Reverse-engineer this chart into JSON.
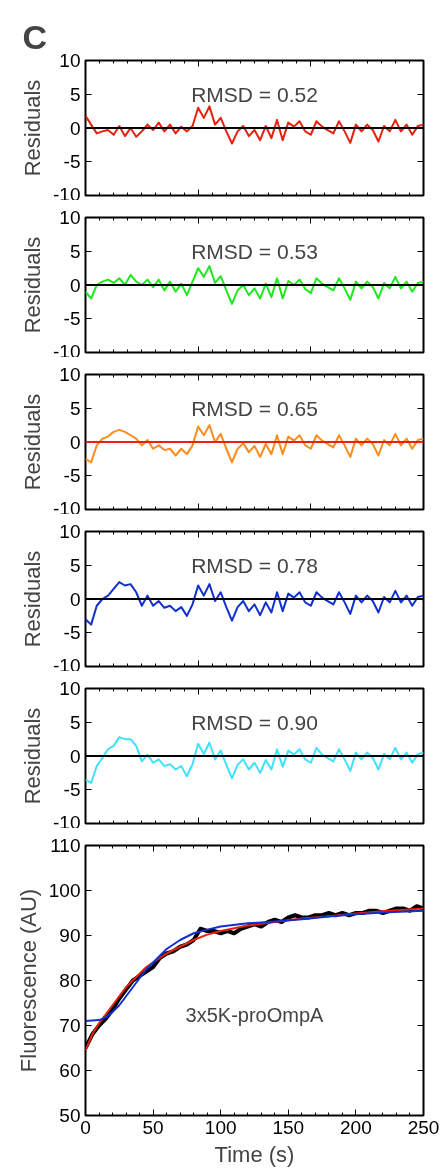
{
  "chart_data": [
    {
      "type": "line",
      "title": "C",
      "ylabel": "Residuals",
      "annotations": [
        "RMSD = 0.52"
      ],
      "ylim": [
        -10,
        10
      ],
      "yticks": [
        -10,
        -5,
        0,
        5,
        10
      ],
      "tick_labels": "y",
      "grid": false,
      "ref_lines": [
        {
          "axis": "y",
          "value": 0,
          "color": "#000000"
        }
      ],
      "categories": [
        null,
        null,
        null,
        null,
        null,
        null,
        null,
        null,
        null,
        null,
        null,
        null,
        null,
        null,
        null,
        null,
        null,
        null,
        null,
        null,
        null,
        null,
        null,
        null,
        null,
        null,
        null,
        null,
        null,
        null,
        null,
        null,
        null,
        null,
        null,
        null,
        null,
        null,
        null,
        null,
        null,
        null,
        null,
        null,
        null,
        null,
        null,
        null,
        null,
        null,
        null,
        null,
        null,
        null,
        null,
        null,
        null,
        null,
        null,
        null,
        null
      ],
      "series": [
        {
          "color": "#e8210c",
          "values": [
            1.8,
            0.5,
            -0.8,
            -0.5,
            -0.3,
            -1,
            0.3,
            -1.2,
            0,
            -1.3,
            -0.5,
            0.5,
            -0.3,
            0.8,
            -0.5,
            0.5,
            -0.8,
            0.2,
            -0.5,
            0.3,
            3,
            1.5,
            3.2,
            0.5,
            1.5,
            -0.5,
            -2.3,
            -0.5,
            0.3,
            -1.2,
            -0.3,
            -1.8,
            0.3,
            -1.5,
            1.2,
            -1.8,
            0.8,
            0.2,
            1,
            -0.5,
            -1,
            1,
            0.2,
            -0.3,
            -0.8,
            1,
            -0.5,
            -2.2,
            0.5,
            -0.5,
            0.5,
            -0.3,
            -2,
            0.3,
            -0.5,
            1.2,
            -0.5,
            0.5,
            -1,
            0.3,
            0.5
          ]
        }
      ]
    },
    {
      "type": "line",
      "ylabel": "Residuals",
      "annotations": [
        "RMSD = 0.53"
      ],
      "ylim": [
        -10,
        10
      ],
      "yticks": [
        -10,
        -5,
        0,
        5,
        10
      ],
      "tick_labels": "y",
      "grid": false,
      "ref_lines": [
        {
          "axis": "y",
          "value": 0,
          "color": "#000000"
        }
      ],
      "categories": [
        null,
        null,
        null,
        null,
        null,
        null,
        null,
        null,
        null,
        null,
        null,
        null,
        null,
        null,
        null,
        null,
        null,
        null,
        null,
        null,
        null,
        null,
        null,
        null,
        null,
        null,
        null,
        null,
        null,
        null,
        null,
        null,
        null,
        null,
        null,
        null,
        null,
        null,
        null,
        null,
        null,
        null,
        null,
        null,
        null,
        null,
        null,
        null,
        null,
        null,
        null,
        null,
        null,
        null,
        null,
        null,
        null,
        null,
        null,
        null,
        null
      ],
      "series": [
        {
          "color": "#1ee81e",
          "values": [
            -1,
            -2,
            0,
            0.5,
            0.8,
            0.3,
            1,
            0,
            1.5,
            0.5,
            0,
            0.8,
            -0.3,
            0.8,
            -0.8,
            0.5,
            -1,
            0.2,
            -1.5,
            0.5,
            2.5,
            1.2,
            2.8,
            0.3,
            1.3,
            -0.8,
            -2.8,
            -0.8,
            0,
            -1.5,
            -0.5,
            -2,
            0.2,
            -1.8,
            1,
            -2,
            0.6,
            0,
            0.8,
            -0.6,
            -1.2,
            1,
            0.2,
            -0.3,
            -0.8,
            1,
            -0.5,
            -2.2,
            0.5,
            -0.5,
            0.5,
            -0.3,
            -2,
            0.3,
            -0.5,
            1.2,
            -0.5,
            0.5,
            -1,
            0.3,
            0.5
          ]
        }
      ]
    },
    {
      "type": "line",
      "ylabel": "Residuals",
      "annotations": [
        "RMSD = 0.65"
      ],
      "ylim": [
        -10,
        10
      ],
      "yticks": [
        -10,
        -5,
        0,
        5,
        10
      ],
      "tick_labels": "y",
      "grid": false,
      "ref_lines": [
        {
          "axis": "y",
          "value": 0,
          "color": "#e8210c"
        }
      ],
      "categories": [
        null,
        null,
        null,
        null,
        null,
        null,
        null,
        null,
        null,
        null,
        null,
        null,
        null,
        null,
        null,
        null,
        null,
        null,
        null,
        null,
        null,
        null,
        null,
        null,
        null,
        null,
        null,
        null,
        null,
        null,
        null,
        null,
        null,
        null,
        null,
        null,
        null,
        null,
        null,
        null,
        null,
        null,
        null,
        null,
        null,
        null,
        null,
        null,
        null,
        null,
        null,
        null,
        null,
        null,
        null,
        null,
        null,
        null,
        null,
        null,
        null
      ],
      "series": [
        {
          "color": "#ff8c1a",
          "values": [
            -2.5,
            -3,
            -0.5,
            0.5,
            0.8,
            1.5,
            1.8,
            1.5,
            1,
            0.5,
            -0.5,
            0.3,
            -1,
            -0.5,
            -1.2,
            -1,
            -2,
            -1,
            -1.8,
            -0.5,
            2.3,
            1,
            2.5,
            0,
            1.2,
            -1,
            -3,
            -1,
            -0.2,
            -1.5,
            -0.6,
            -2.2,
            -0.3,
            -1.8,
            1,
            -1.8,
            0.8,
            0.2,
            1,
            -0.5,
            -1,
            1,
            0.2,
            -0.3,
            -0.8,
            1,
            -0.5,
            -2.2,
            0.5,
            -0.5,
            0.5,
            -0.3,
            -2,
            0.3,
            -0.5,
            1.2,
            -0.5,
            0.5,
            -1,
            0.3,
            0.5
          ]
        }
      ]
    },
    {
      "type": "line",
      "ylabel": "Residuals",
      "annotations": [
        "RMSD = 0.78"
      ],
      "ylim": [
        -10,
        10
      ],
      "yticks": [
        -10,
        -5,
        0,
        5,
        10
      ],
      "tick_labels": "y",
      "grid": false,
      "ref_lines": [
        {
          "axis": "y",
          "value": 0,
          "color": "#000000"
        }
      ],
      "categories": [
        null,
        null,
        null,
        null,
        null,
        null,
        null,
        null,
        null,
        null,
        null,
        null,
        null,
        null,
        null,
        null,
        null,
        null,
        null,
        null,
        null,
        null,
        null,
        null,
        null,
        null,
        null,
        null,
        null,
        null,
        null,
        null,
        null,
        null,
        null,
        null,
        null,
        null,
        null,
        null,
        null,
        null,
        null,
        null,
        null,
        null,
        null,
        null,
        null,
        null,
        null,
        null,
        null,
        null,
        null,
        null,
        null,
        null,
        null,
        null,
        null
      ],
      "series": [
        {
          "color": "#1030d0",
          "values": [
            -3,
            -3.8,
            -1,
            0,
            0.5,
            1.5,
            2.5,
            2,
            2.2,
            1,
            -1,
            0.5,
            -1,
            -0.3,
            -1.3,
            -1,
            -1.8,
            -1.2,
            -2.5,
            -0.8,
            2,
            0.5,
            2.2,
            -0.3,
            1,
            -1.2,
            -3.2,
            -1.2,
            -0.3,
            -1.8,
            -0.8,
            -2.4,
            -0.5,
            -2,
            1,
            -1.8,
            0.8,
            0.2,
            1,
            -0.5,
            -1,
            1,
            0.2,
            -0.3,
            -0.8,
            1,
            -0.5,
            -2.2,
            0.5,
            -0.5,
            0.5,
            -0.3,
            -2,
            0.3,
            -0.5,
            1.2,
            -0.5,
            0.5,
            -1,
            0.3,
            0.5
          ]
        }
      ]
    },
    {
      "type": "line",
      "ylabel": "Residuals",
      "annotations": [
        "RMSD = 0.90"
      ],
      "ylim": [
        -10,
        10
      ],
      "yticks": [
        -10,
        -5,
        0,
        5,
        10
      ],
      "tick_labels": "y",
      "grid": false,
      "ref_lines": [
        {
          "axis": "y",
          "value": 0,
          "color": "#000000"
        }
      ],
      "categories": [
        null,
        null,
        null,
        null,
        null,
        null,
        null,
        null,
        null,
        null,
        null,
        null,
        null,
        null,
        null,
        null,
        null,
        null,
        null,
        null,
        null,
        null,
        null,
        null,
        null,
        null,
        null,
        null,
        null,
        null,
        null,
        null,
        null,
        null,
        null,
        null,
        null,
        null,
        null,
        null,
        null,
        null,
        null,
        null,
        null,
        null,
        null,
        null,
        null,
        null,
        null,
        null,
        null,
        null,
        null,
        null,
        null,
        null,
        null,
        null,
        null
      ],
      "series": [
        {
          "color": "#40e0ff",
          "values": [
            -3.5,
            -4,
            -1.5,
            -0.3,
            1,
            1.5,
            2.8,
            2.5,
            2.5,
            1.5,
            -0.8,
            0.2,
            -1,
            -0.5,
            -1.5,
            -1.2,
            -2,
            -1.5,
            -3,
            -1.2,
            1.8,
            0.3,
            2,
            -0.5,
            0.8,
            -1.3,
            -3.3,
            -1.3,
            -0.5,
            -2,
            -1,
            -2.5,
            -0.6,
            -2,
            1,
            -1.6,
            0.8,
            0.2,
            1,
            -0.5,
            -1,
            1.2,
            0.2,
            -0.3,
            -0.8,
            1,
            -0.5,
            -2.2,
            0.5,
            -0.5,
            0.5,
            -0.3,
            -2,
            0.3,
            -0.5,
            1.2,
            -0.5,
            0.5,
            -1,
            0.3,
            0.5
          ]
        }
      ]
    },
    {
      "type": "line",
      "xlabel": "Time (s)",
      "ylabel": "Fluorescence (AU)",
      "annotations": [
        "3x5K-proOmpA"
      ],
      "xlim": [
        0,
        250
      ],
      "xticks": [
        0,
        50,
        100,
        150,
        200,
        250
      ],
      "ylim": [
        50,
        110
      ],
      "yticks": [
        50,
        60,
        70,
        80,
        90,
        100,
        110
      ],
      "grid": false,
      "series": [
        {
          "color": "#000000",
          "x": [
            0,
            5,
            10,
            15,
            20,
            25,
            30,
            35,
            40,
            45,
            50,
            55,
            60,
            65,
            70,
            75,
            80,
            85,
            90,
            95,
            100,
            105,
            110,
            115,
            120,
            125,
            130,
            135,
            140,
            145,
            150,
            155,
            160,
            165,
            170,
            175,
            180,
            185,
            190,
            195,
            200,
            205,
            210,
            215,
            220,
            225,
            230,
            235,
            240,
            245,
            250
          ],
          "values": [
            65,
            68,
            70,
            71.5,
            73.5,
            76,
            78,
            80,
            81,
            82,
            83,
            85,
            86,
            86.5,
            87.5,
            88,
            89,
            91.5,
            91,
            91,
            90.5,
            91,
            90.5,
            91.5,
            92,
            92.5,
            92,
            93,
            93.5,
            93,
            94,
            94.5,
            94,
            94,
            94.5,
            94.5,
            95,
            94.5,
            95,
            94.5,
            95,
            95,
            95.5,
            95.5,
            95,
            95.5,
            96,
            96,
            95.5,
            96.5,
            96
          ]
        },
        {
          "color": "#e8210c",
          "x": [
            0,
            5,
            10,
            15,
            20,
            25,
            30,
            35,
            40,
            45,
            50,
            60,
            70,
            80,
            90,
            100,
            120,
            140,
            160,
            180,
            200,
            220,
            250
          ],
          "values": [
            64.5,
            68,
            70.5,
            72.5,
            74.5,
            76.5,
            78.5,
            80,
            81.5,
            83,
            84,
            86,
            87.5,
            89,
            90.2,
            91,
            92.2,
            93,
            93.8,
            94.3,
            94.9,
            95.4,
            96
          ]
        },
        {
          "color": "#1030d0",
          "x": [
            0,
            10,
            15,
            20,
            25,
            30,
            35,
            40,
            45,
            50,
            60,
            70,
            80,
            90,
            100,
            120,
            140,
            160,
            180,
            200,
            220,
            250
          ],
          "values": [
            71,
            71.2,
            71.8,
            73,
            74.5,
            76.5,
            78.5,
            80.5,
            82.5,
            84,
            87,
            89,
            90.5,
            91.3,
            92,
            92.7,
            93.1,
            93.6,
            94.2,
            94.7,
            95.1,
            95.5
          ]
        }
      ]
    }
  ]
}
